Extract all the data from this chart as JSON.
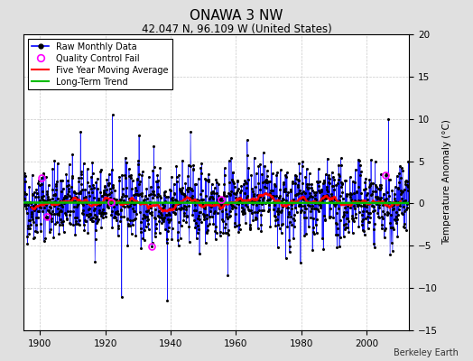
{
  "title": "ONAWA 3 NW",
  "subtitle": "42.047 N, 96.109 W (United States)",
  "ylabel": "Temperature Anomaly (°C)",
  "credit": "Berkeley Earth",
  "xlim": [
    1895,
    2013
  ],
  "ylim": [
    -15,
    20
  ],
  "yticks": [
    -15,
    -10,
    -5,
    0,
    5,
    10,
    15,
    20
  ],
  "xticks": [
    1900,
    1920,
    1940,
    1960,
    1980,
    2000
  ],
  "start_year": 1895,
  "end_year": 2012,
  "seed": 42,
  "raw_color": "#0000FF",
  "dot_color": "#000000",
  "ma_color": "#FF0000",
  "trend_color": "#00BB00",
  "qc_color": "#FF00FF",
  "bg_color": "#E0E0E0",
  "plot_bg_color": "#FFFFFF",
  "grid_color": "#BBBBBB",
  "title_fontsize": 11,
  "subtitle_fontsize": 8.5,
  "tick_fontsize": 7.5,
  "ylabel_fontsize": 7.5,
  "legend_fontsize": 7,
  "credit_fontsize": 7
}
